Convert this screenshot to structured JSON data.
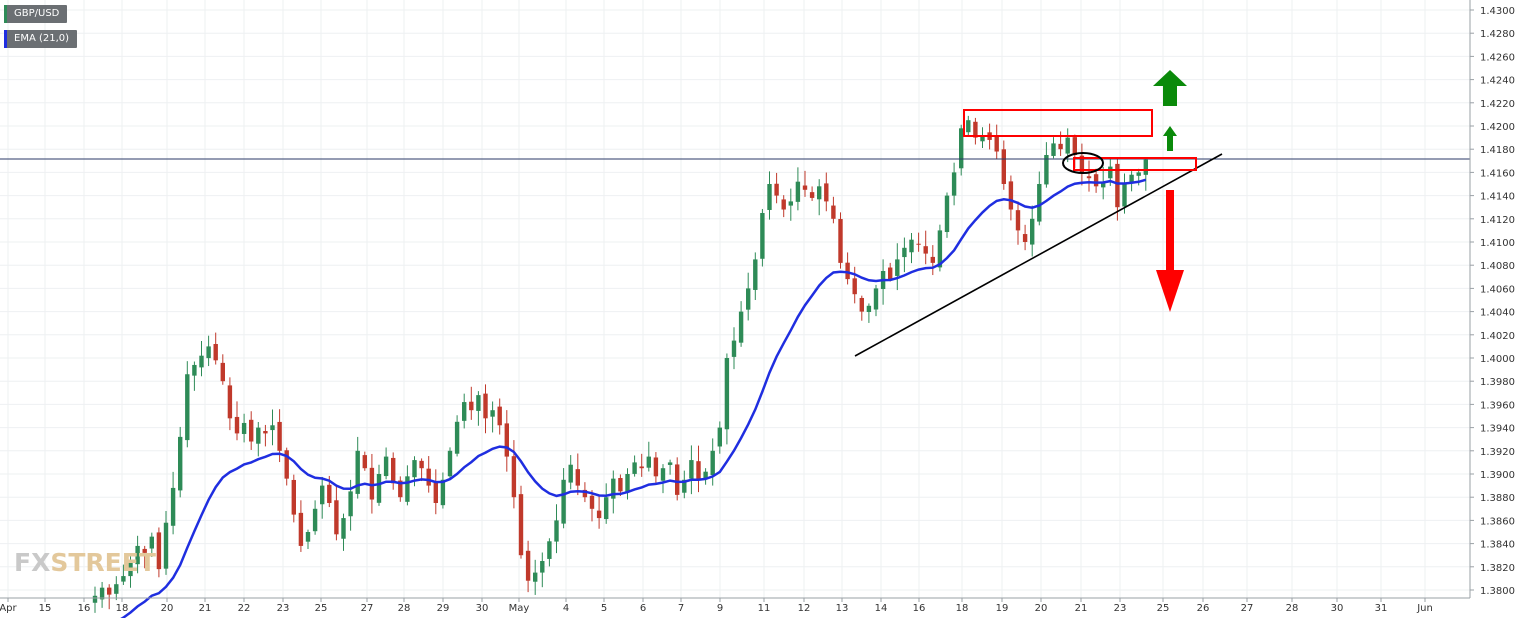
{
  "symbol": "GBP/USD",
  "indicator": "EMA (21,0)",
  "watermark": {
    "fx": "FX",
    "street": "STREET"
  },
  "colors": {
    "bull": "#2e8b57",
    "bear": "#c0392b",
    "ema": "#1f2ee0",
    "trend": "#000000",
    "box": "#ff0000",
    "up_arrow": "#0a8a0a",
    "down_arrow": "#ff0000",
    "price_line": "#2b3a67"
  },
  "chart_data": {
    "type": "candlestick",
    "title": "GBP/USD",
    "timeframe_labels": [
      "Apr",
      "15",
      "16",
      "18",
      "20",
      "21",
      "22",
      "23",
      "25",
      "27",
      "28",
      "29",
      "30",
      "May",
      "4",
      "5",
      "6",
      "7",
      "9",
      "11",
      "12",
      "13",
      "14",
      "16",
      "18",
      "19",
      "20",
      "21",
      "23",
      "25",
      "26",
      "27",
      "28",
      "30",
      "31",
      "Jun"
    ],
    "y_ticks": [
      "1.4300",
      "1.4280",
      "1.4260",
      "1.4240",
      "1.4220",
      "1.4200",
      "1.4180",
      "1.4160",
      "1.4140",
      "1.4120",
      "1.4100",
      "1.4080",
      "1.4060",
      "1.4040",
      "1.4020",
      "1.4000",
      "1.3980",
      "1.3960",
      "1.3940",
      "1.3920",
      "1.3900",
      "1.3880",
      "1.3860",
      "1.3840",
      "1.3820",
      "1.3800"
    ],
    "ylim": [
      1.3798,
      1.4312
    ],
    "current_price": "1.41715",
    "ema_period": 21,
    "close_path": [
      1.3795,
      1.3802,
      1.3796,
      1.3805,
      1.3812,
      1.3825,
      1.3838,
      1.3832,
      1.3846,
      1.3818,
      1.3858,
      1.3888,
      1.3932,
      1.3986,
      1.3994,
      1.4002,
      1.401,
      1.3998,
      1.398,
      1.3948,
      1.3935,
      1.3944,
      1.3928,
      1.394,
      1.3935,
      1.3942,
      1.392,
      1.3896,
      1.3865,
      1.3838,
      1.385,
      1.387,
      1.389,
      1.3875,
      1.3848,
      1.3862,
      1.3885,
      1.392,
      1.3905,
      1.3878,
      1.39,
      1.3915,
      1.3892,
      1.388,
      1.3898,
      1.3912,
      1.3905,
      1.389,
      1.3875,
      1.3895,
      1.392,
      1.3945,
      1.3962,
      1.3955,
      1.3968,
      1.3948,
      1.3955,
      1.3942,
      1.3915,
      1.388,
      1.383,
      1.3808,
      1.3815,
      1.3825,
      1.3842,
      1.386,
      1.3895,
      1.3908,
      1.389,
      1.388,
      1.387,
      1.3862,
      1.388,
      1.3896,
      1.3885,
      1.39,
      1.391,
      1.3905,
      1.3915,
      1.3898,
      1.3905,
      1.391,
      1.3882,
      1.3895,
      1.3912,
      1.3896,
      1.3902,
      1.392,
      1.394,
      1.4,
      1.4015,
      1.404,
      1.406,
      1.4085,
      1.4125,
      1.415,
      1.414,
      1.4128,
      1.4135,
      1.4152,
      1.4145,
      1.4138,
      1.4148,
      1.4135,
      1.412,
      1.4082,
      1.4068,
      1.4055,
      1.404,
      1.4045,
      1.406,
      1.4075,
      1.4068,
      1.4085,
      1.4095,
      1.4102,
      1.4098,
      1.409,
      1.4082,
      1.411,
      1.414,
      1.416,
      1.4198,
      1.4205,
      1.419,
      1.4192,
      1.4188,
      1.4178,
      1.415,
      1.4128,
      1.411,
      1.41,
      1.412,
      1.415,
      1.4175,
      1.4185,
      1.418,
      1.419,
      1.4175,
      1.416,
      1.4155,
      1.4148,
      1.4152,
      1.4165,
      1.413,
      1.415,
      1.4158,
      1.416,
      1.4171
    ]
  }
}
